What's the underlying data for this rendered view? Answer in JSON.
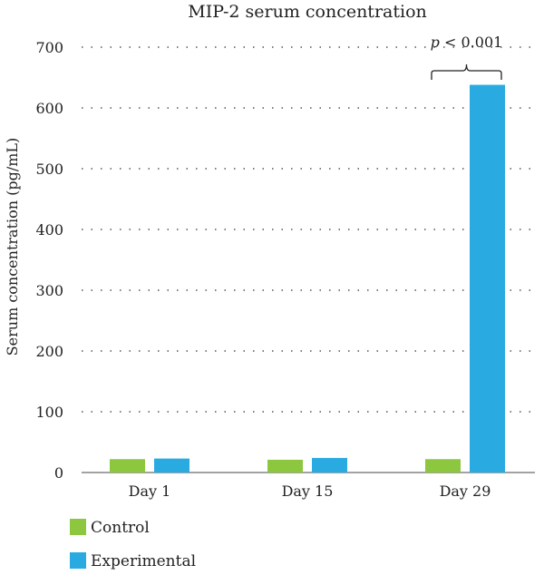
{
  "chart_data": {
    "type": "bar",
    "title": "MIP-2 serum concentration",
    "xlabel": "",
    "ylabel": "Serum concentration (pg/mL)",
    "ylim": [
      0,
      700
    ],
    "yticks": [
      0,
      100,
      200,
      300,
      400,
      500,
      600,
      700
    ],
    "grid": true,
    "categories": [
      "Day 1",
      "Day 15",
      "Day 29"
    ],
    "series": [
      {
        "name": "Control",
        "color": "#8dc63f",
        "values": [
          22,
          21,
          22
        ]
      },
      {
        "name": "Experimental",
        "color": "#29abe2",
        "values": [
          23,
          24,
          638
        ]
      }
    ],
    "annotation": {
      "category": "Day 29",
      "text_italic": "p",
      "text_rest": " < 0.001"
    },
    "legend_position": "bottom-left"
  }
}
